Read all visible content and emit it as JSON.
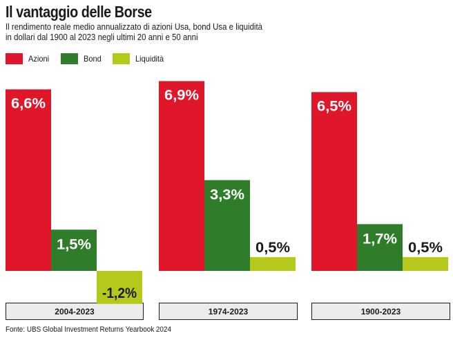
{
  "title": "Il vantaggio delle Borse",
  "subtitle": {
    "line1": "Il rendimento reale medio annualizzato di azioni Usa, bond Usa e liquidità",
    "line2": "in dollari dal 1900 al 2023 negli ultimi 20 anni e 50 anni"
  },
  "colors": {
    "azioni": "#e0162b",
    "bond": "#2f7d2a",
    "liquidita": "#b5c81c",
    "panel_bg": "#ececea",
    "panel_border": "#1a1a1a"
  },
  "source": "Fonte: UBS Global Investment Returns Yearbook 2024",
  "chart_data": {
    "type": "bar",
    "categories": [
      "2004-2023",
      "1974-2023",
      "1900-2023"
    ],
    "series": [
      {
        "name": "Azioni",
        "values": [
          6.6,
          6.9,
          6.5
        ],
        "labels": [
          "6,6%",
          "6,9%",
          "6,5%"
        ]
      },
      {
        "name": "Bond",
        "values": [
          1.5,
          3.3,
          1.7
        ],
        "labels": [
          "1,5%",
          "3,3%",
          "1,7%"
        ]
      },
      {
        "name": "Liquidità",
        "values": [
          -1.2,
          0.5,
          0.5
        ],
        "labels": [
          "-1,2%",
          "0,5%",
          "0,5%"
        ]
      }
    ],
    "legend_position": "top-left",
    "grid": false
  }
}
